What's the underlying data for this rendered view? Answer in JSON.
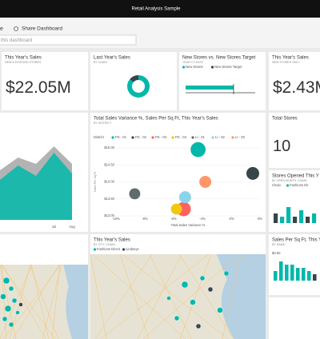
{
  "window_title": "Retail Analysis Sample",
  "toolbar": {
    "icon_text": "e",
    "share": "Share Dashboard",
    "search_placeholder": "this dashboard"
  },
  "tiles": [
    {
      "title": "This Year's Sales",
      "subtitle": "NEW & EXISTING STORES",
      "big_value": "$22.05M"
    },
    {
      "title": "Last Year's Sales",
      "subtitle": "BY CHAIN",
      "donut": {
        "values": [
          86,
          14
        ],
        "colors": [
          "#01b8aa",
          "#374649"
        ]
      }
    },
    {
      "title": "New Stores vs. New Stores Target",
      "subtitle": "YEAR TO DATE",
      "legend": [
        {
          "name": "New Stores",
          "color": "#01b8aa"
        },
        {
          "name": "New Stores Target",
          "color": "#374649"
        }
      ]
    },
    {
      "title": "This Year's Sales",
      "subtitle": "NEW STORES ONLY",
      "big_value": "$2.43M"
    },
    {
      "area": {
        "categories": [
          null,
          null,
          null,
          "Jul",
          "Aug"
        ],
        "series": [
          {
            "color": "#a6a6a6",
            "values": [
              62,
              78,
              70,
              92,
              70
            ]
          },
          {
            "color": "#01b8aa",
            "values": [
              50,
              68,
              55,
              84,
              58
            ]
          }
        ]
      }
    },
    {
      "title": "Total Sales Variance %, Sales Per Sq Ft, This Year's Sales",
      "subtitle": "BY DISTRICT",
      "scatter": {
        "legend_title": "District",
        "x_label": "Total Sales Variance %",
        "y_label": "Sales Per Sq Ft",
        "xlim": [
          -10,
          0
        ],
        "ylim": [
          13,
          15
        ],
        "xticks": [
          {
            "value": -10,
            "label": "-10%"
          },
          {
            "value": -8,
            "label": "-8%"
          },
          {
            "value": -6,
            "label": "-6%"
          },
          {
            "value": -4,
            "label": "-4%"
          },
          {
            "value": -2,
            "label": "-2%"
          },
          {
            "value": 0,
            "label": "0%"
          }
        ],
        "yticks": [
          {
            "value": 13,
            "label": "$13.00"
          },
          {
            "value": 13.5,
            "label": "$13.50"
          },
          {
            "value": 14,
            "label": "$14.00"
          },
          {
            "value": 14.5,
            "label": "$14.50"
          },
          {
            "value": 15,
            "label": "$15.00"
          }
        ],
        "series": [
          {
            "name": "FD - 01",
            "color": "#01b8aa",
            "x": -4.3,
            "y": 14.95,
            "size": 22
          },
          {
            "name": "FD - 02",
            "color": "#374649",
            "x": -0.5,
            "y": 14.25,
            "size": 16
          },
          {
            "name": "FD - 03",
            "color": "#fd625e",
            "x": -5.3,
            "y": 13.2,
            "size": 20
          },
          {
            "name": "FD - 04",
            "color": "#f2c80f",
            "x": -5.8,
            "y": 13.2,
            "size": 12
          },
          {
            "name": "LI - 01",
            "color": "#5f6b6d",
            "x": -8.7,
            "y": 13.65,
            "size": 12
          },
          {
            "name": "LI - 02",
            "color": "#8ad4eb",
            "x": -5.2,
            "y": 13.55,
            "size": 14
          },
          {
            "name": "LI - 03",
            "color": "#fe9666",
            "x": -3.8,
            "y": 14.0,
            "size": 14
          }
        ]
      }
    },
    {
      "title": "Total Stores",
      "subtitle": "",
      "big_value": "10"
    },
    {
      "title": "Stores Opened This Y",
      "subtitle": "BY OPEN MONTH, CHAIN",
      "legend": [
        {
          "name": "Chain",
          "color": null
        },
        {
          "name": "Fashions Dir",
          "color": "#01b8aa"
        }
      ],
      "bars": {
        "values": [
          3,
          2,
          5,
          2,
          4,
          2,
          3
        ],
        "colors": [
          "#374649",
          "#01b8aa",
          "#01b8aa",
          "#374649",
          "#01b8aa",
          "#374649",
          "#01b8aa"
        ]
      }
    },
    {
      "map": true
    },
    {
      "title": "This Year's Sales",
      "subtitle": "BY CITY, CHAIN",
      "legend": [
        {
          "name": "Fashions Direct",
          "color": "#01b8aa"
        },
        {
          "name": "Lindseys",
          "color": "#374649"
        }
      ]
    },
    {
      "title": "Sales Per Sq Ft, This Ye",
      "subtitle": "BY NAME",
      "axis_label": "$0.50",
      "bars": {
        "values": [
          3,
          6,
          5,
          5,
          4,
          4,
          3,
          2
        ],
        "colors": [
          "#01b8aa",
          "#01b8aa",
          "#01b8aa",
          "#01b8aa",
          "#01b8aa",
          "#01b8aa",
          "#01b8aa",
          "#374649"
        ]
      }
    }
  ]
}
